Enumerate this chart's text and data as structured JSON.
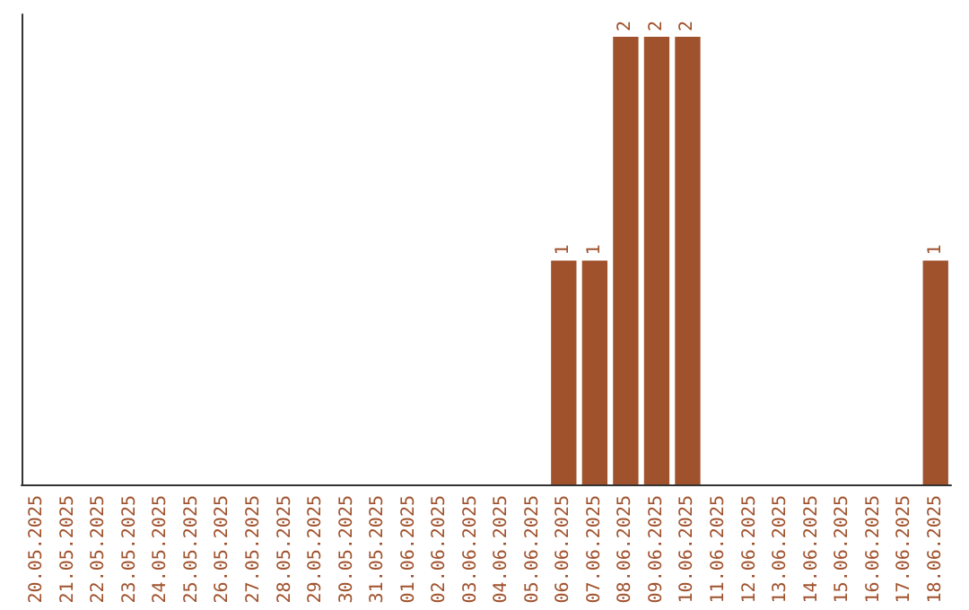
{
  "chart_data": {
    "type": "bar",
    "categories": [
      "20.05.2025",
      "21.05.2025",
      "22.05.2025",
      "23.05.2025",
      "24.05.2025",
      "25.05.2025",
      "26.05.2025",
      "27.05.2025",
      "28.05.2025",
      "29.05.2025",
      "30.05.2025",
      "31.05.2025",
      "01.06.2025",
      "02.06.2025",
      "03.06.2025",
      "04.06.2025",
      "05.06.2025",
      "06.06.2025",
      "07.06.2025",
      "08.06.2025",
      "09.06.2025",
      "10.06.2025",
      "11.06.2025",
      "12.06.2025",
      "13.06.2025",
      "14.06.2025",
      "15.06.2025",
      "16.06.2025",
      "17.06.2025",
      "18.06.2025"
    ],
    "values": [
      null,
      null,
      null,
      null,
      null,
      null,
      null,
      null,
      null,
      null,
      null,
      null,
      null,
      null,
      null,
      null,
      null,
      1,
      1,
      2,
      2,
      2,
      null,
      null,
      null,
      null,
      null,
      null,
      null,
      1
    ],
    "value_labels": [
      null,
      null,
      null,
      null,
      null,
      null,
      null,
      null,
      null,
      null,
      null,
      null,
      null,
      null,
      null,
      null,
      null,
      "1",
      "1",
      "2",
      "2",
      "2",
      null,
      null,
      null,
      null,
      null,
      null,
      null,
      "1"
    ],
    "color": "#a0522d",
    "tick_labels": "x"
  }
}
